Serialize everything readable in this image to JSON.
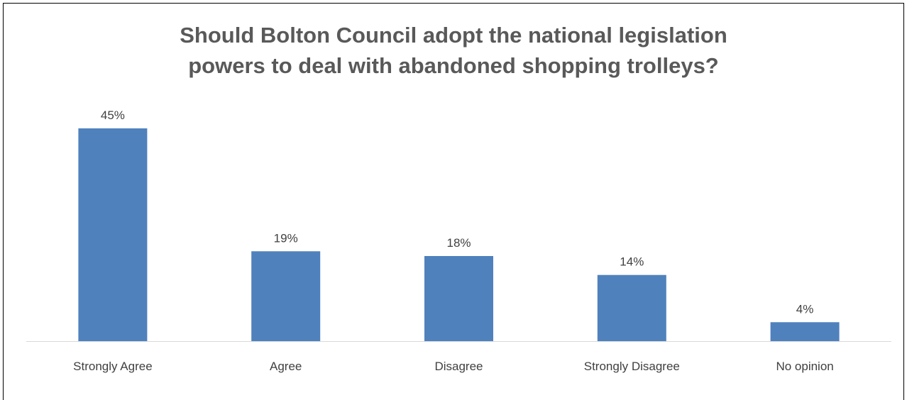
{
  "chart_data": {
    "type": "bar",
    "title_lines": [
      "Should Bolton Council adopt the national legislation",
      "powers to deal with abandoned shopping trolleys?"
    ],
    "categories": [
      "Strongly Agree",
      "Agree",
      "Disagree",
      "Strongly Disagree",
      "No opinion"
    ],
    "values": [
      45,
      19,
      18,
      14,
      4
    ],
    "data_labels": [
      "45%",
      "19%",
      "18%",
      "14%",
      "4%"
    ],
    "value_unit": "%",
    "ylim": [
      0,
      45
    ],
    "grid": false,
    "legend": "none",
    "colors": {
      "bar": "#4f81bd",
      "axis": "#d9d9d9",
      "title": "#595959",
      "text": "#404040"
    }
  }
}
